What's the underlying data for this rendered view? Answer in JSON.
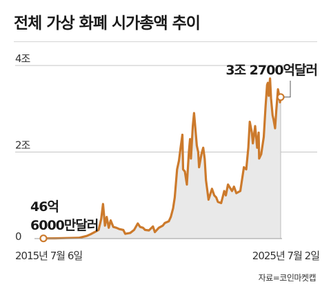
{
  "title": "전체 가상 화폐 시가총액 추이",
  "source": "자료=코인마켓캡",
  "colors": {
    "line": "#cc7a2c",
    "area": "#e9e9e9",
    "grid": "#c4c4c4",
    "text": "#222222"
  },
  "chart_data": {
    "type": "area",
    "title": "전체 가상 화폐 시가총액 추이",
    "unit": "달러",
    "y_tick_labels": [
      {
        "value": 0,
        "label": "0"
      },
      {
        "value": 2,
        "label": "2조"
      },
      {
        "value": 4,
        "label": "4조"
      }
    ],
    "ylim": [
      0,
      4
    ],
    "x_tick_labels": [
      "2015년 7월 6일",
      "2025년 7월 2일"
    ],
    "xlim": [
      "2015-07-06",
      "2025-07-02"
    ],
    "grid": true,
    "annotations": [
      {
        "date": "2015-07-06",
        "value": 0.0046,
        "lines": [
          "46억",
          "6000만달러"
        ]
      },
      {
        "date": "2025-07-02",
        "value": 3.27,
        "lines": [
          "3조 2700억달러"
        ]
      }
    ],
    "series": [
      {
        "points": [
          [
            "2015-07-06",
            0.0046
          ],
          [
            "2016-01-01",
            0.007
          ],
          [
            "2016-07-01",
            0.012
          ],
          [
            "2017-01-01",
            0.018
          ],
          [
            "2017-05-01",
            0.06
          ],
          [
            "2017-07-01",
            0.1
          ],
          [
            "2017-09-01",
            0.15
          ],
          [
            "2017-11-01",
            0.2
          ],
          [
            "2017-12-10",
            0.45
          ],
          [
            "2018-01-07",
            0.8
          ],
          [
            "2018-02-06",
            0.3
          ],
          [
            "2018-03-05",
            0.5
          ],
          [
            "2018-04-06",
            0.25
          ],
          [
            "2018-05-05",
            0.42
          ],
          [
            "2018-06-15",
            0.27
          ],
          [
            "2018-08-01",
            0.25
          ],
          [
            "2018-09-15",
            0.22
          ],
          [
            "2018-11-15",
            0.2
          ],
          [
            "2018-12-15",
            0.11
          ],
          [
            "2019-03-01",
            0.13
          ],
          [
            "2019-05-01",
            0.2
          ],
          [
            "2019-06-26",
            0.35
          ],
          [
            "2019-08-01",
            0.27
          ],
          [
            "2019-09-15",
            0.25
          ],
          [
            "2019-10-15",
            0.2
          ],
          [
            "2019-12-15",
            0.19
          ],
          [
            "2020-02-15",
            0.28
          ],
          [
            "2020-03-15",
            0.15
          ],
          [
            "2020-05-15",
            0.25
          ],
          [
            "2020-07-15",
            0.3
          ],
          [
            "2020-08-15",
            0.36
          ],
          [
            "2020-10-15",
            0.4
          ],
          [
            "2020-11-15",
            0.5
          ],
          [
            "2020-12-20",
            0.7
          ],
          [
            "2021-01-15",
            0.95
          ],
          [
            "2021-02-20",
            1.6
          ],
          [
            "2021-03-20",
            1.8
          ],
          [
            "2021-04-15",
            2.1
          ],
          [
            "2021-05-12",
            2.4
          ],
          [
            "2021-05-23",
            1.6
          ],
          [
            "2021-06-20",
            1.55
          ],
          [
            "2021-07-20",
            1.25
          ],
          [
            "2021-08-20",
            2.0
          ],
          [
            "2021-09-07",
            2.3
          ],
          [
            "2021-09-21",
            1.85
          ],
          [
            "2021-10-20",
            2.6
          ],
          [
            "2021-11-08",
            2.9
          ],
          [
            "2021-11-28",
            2.55
          ],
          [
            "2021-12-20",
            2.15
          ],
          [
            "2022-01-10",
            2.0
          ],
          [
            "2022-01-24",
            1.65
          ],
          [
            "2022-03-01",
            1.95
          ],
          [
            "2022-03-29",
            2.1
          ],
          [
            "2022-04-20",
            1.85
          ],
          [
            "2022-05-10",
            1.35
          ],
          [
            "2022-06-18",
            0.9
          ],
          [
            "2022-08-10",
            1.15
          ],
          [
            "2022-09-15",
            1.0
          ],
          [
            "2022-10-15",
            0.95
          ],
          [
            "2022-11-10",
            0.85
          ],
          [
            "2022-12-30",
            0.82
          ],
          [
            "2023-02-15",
            1.1
          ],
          [
            "2023-03-12",
            1.0
          ],
          [
            "2023-04-14",
            1.25
          ],
          [
            "2023-06-15",
            1.1
          ],
          [
            "2023-07-15",
            1.2
          ],
          [
            "2023-08-20",
            1.05
          ],
          [
            "2023-10-20",
            1.1
          ],
          [
            "2023-12-15",
            1.65
          ],
          [
            "2024-01-20",
            1.6
          ],
          [
            "2024-02-20",
            2.1
          ],
          [
            "2024-03-14",
            2.7
          ],
          [
            "2024-04-15",
            2.45
          ],
          [
            "2024-05-01",
            2.2
          ],
          [
            "2024-06-05",
            2.6
          ],
          [
            "2024-07-05",
            2.1
          ],
          [
            "2024-07-29",
            2.45
          ],
          [
            "2024-08-05",
            1.85
          ],
          [
            "2024-09-06",
            1.95
          ],
          [
            "2024-10-15",
            2.35
          ],
          [
            "2024-11-12",
            3.05
          ],
          [
            "2024-12-05",
            3.55
          ],
          [
            "2024-12-17",
            3.6
          ],
          [
            "2024-12-30",
            3.3
          ],
          [
            "2025-01-20",
            3.7
          ],
          [
            "2025-02-03",
            3.25
          ],
          [
            "2025-02-28",
            2.85
          ],
          [
            "2025-03-15",
            2.75
          ],
          [
            "2025-04-07",
            2.55
          ],
          [
            "2025-04-25",
            2.95
          ],
          [
            "2025-05-22",
            3.45
          ],
          [
            "2025-06-10",
            3.3
          ],
          [
            "2025-06-22",
            3.15
          ],
          [
            "2025-07-02",
            3.27
          ]
        ]
      }
    ]
  }
}
